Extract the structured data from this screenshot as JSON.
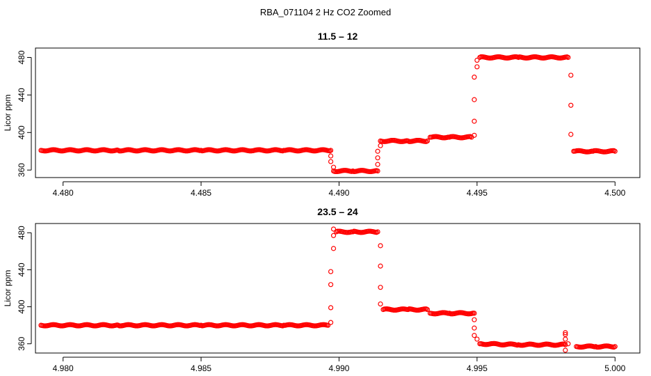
{
  "figure_title": "RBA_071104  2 Hz CO2 Zoomed",
  "colors": {
    "points": "#ff0000",
    "axes": "#000000"
  },
  "chart_data": [
    {
      "type": "scatter",
      "title": "11.5 – 12",
      "xlabel": "",
      "ylabel": "Licor ppm",
      "xlim": [
        4.479,
        4.5009
      ],
      "ylim": [
        352,
        490
      ],
      "xticks": [
        4.48,
        4.485,
        4.49,
        4.495,
        4.5
      ],
      "xtick_labels": [
        "4.480",
        "4.485",
        "4.490",
        "4.495",
        "4.500"
      ],
      "yticks": [
        360,
        400,
        440,
        480
      ],
      "ytick_labels": [
        "360",
        "400",
        "440",
        "480"
      ],
      "grid": false,
      "marker": "open-circle",
      "series": [
        {
          "values": [
            [
              4.4792,
              381
            ],
            [
              4.482,
              381
            ],
            [
              4.485,
              381
            ],
            [
              4.488,
              381
            ],
            [
              4.4897,
              381
            ],
            [
              4.4897,
              375
            ],
            [
              4.4897,
              369
            ],
            [
              4.4898,
              363
            ],
            [
              4.4898,
              359
            ],
            [
              4.4905,
              359
            ],
            [
              4.4914,
              359
            ],
            [
              4.4914,
              366
            ],
            [
              4.4914,
              373
            ],
            [
              4.4914,
              380
            ],
            [
              4.4915,
              386
            ],
            [
              4.4915,
              391
            ],
            [
              4.4925,
              391
            ],
            [
              4.4932,
              391
            ],
            [
              4.4933,
              395
            ],
            [
              4.494,
              395
            ],
            [
              4.4948,
              395
            ],
            [
              4.4949,
              397
            ],
            [
              4.4949,
              412
            ],
            [
              4.4949,
              435
            ],
            [
              4.4949,
              459
            ],
            [
              4.495,
              470
            ],
            [
              4.495,
              477
            ],
            [
              4.4951,
              480
            ],
            [
              4.4965,
              480
            ],
            [
              4.4983,
              480
            ],
            [
              4.4984,
              461
            ],
            [
              4.4984,
              429
            ],
            [
              4.4984,
              398
            ],
            [
              4.4985,
              380
            ],
            [
              4.4992,
              380
            ],
            [
              4.5,
              380
            ]
          ]
        }
      ]
    },
    {
      "type": "scatter",
      "title": "23.5 – 24",
      "xlabel": "",
      "ylabel": "Licor ppm",
      "xlim": [
        4.979,
        5.0009
      ],
      "ylim": [
        350,
        490
      ],
      "xticks": [
        4.98,
        4.985,
        4.99,
        4.995,
        5.0
      ],
      "xtick_labels": [
        "4.980",
        "4.985",
        "4.990",
        "4.995",
        "5.000"
      ],
      "yticks": [
        360,
        400,
        440,
        480
      ],
      "ytick_labels": [
        "360",
        "400",
        "440",
        "480"
      ],
      "grid": false,
      "marker": "open-circle",
      "series": [
        {
          "values": [
            [
              4.9792,
              380
            ],
            [
              4.982,
              380
            ],
            [
              4.985,
              380
            ],
            [
              4.988,
              380
            ],
            [
              4.9896,
              380
            ],
            [
              4.9897,
              383
            ],
            [
              4.9897,
              399
            ],
            [
              4.9897,
              424
            ],
            [
              4.9897,
              438
            ],
            [
              4.9898,
              463
            ],
            [
              4.9898,
              477
            ],
            [
              4.9898,
              484
            ],
            [
              4.9899,
              481
            ],
            [
              4.9905,
              481
            ],
            [
              4.9914,
              481
            ],
            [
              4.9915,
              466
            ],
            [
              4.9915,
              444
            ],
            [
              4.9915,
              421
            ],
            [
              4.9915,
              403
            ],
            [
              4.9916,
              397
            ],
            [
              4.9925,
              397
            ],
            [
              4.9932,
              397
            ],
            [
              4.9933,
              393
            ],
            [
              4.994,
              393
            ],
            [
              4.9949,
              393
            ],
            [
              4.9949,
              386
            ],
            [
              4.9949,
              377
            ],
            [
              4.9949,
              369
            ],
            [
              4.995,
              365
            ],
            [
              4.9951,
              360
            ],
            [
              4.9965,
              359
            ],
            [
              4.9982,
              359
            ],
            [
              4.9982,
              372
            ],
            [
              4.9982,
              370
            ],
            [
              4.9982,
              365
            ],
            [
              4.9982,
              353
            ],
            [
              4.9983,
              360
            ],
            [
              4.9986,
              357
            ],
            [
              4.9993,
              357
            ],
            [
              5.0,
              357
            ]
          ]
        }
      ]
    }
  ]
}
